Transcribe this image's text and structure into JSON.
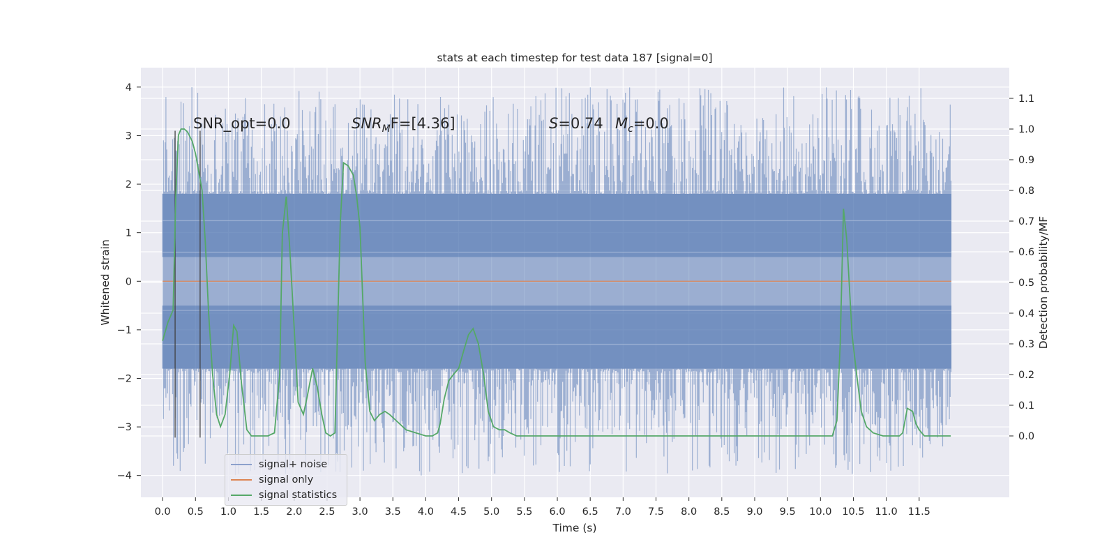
{
  "chart_data": {
    "type": "line",
    "title": "stats at each timestep for test data 187 [signal=0]",
    "xlabel": "Time (s)",
    "ylabel": "Whitened strain",
    "y2label": "Detection probability/MF",
    "xlim": [
      -0.33,
      12.87
    ],
    "ylim": [
      -4.45,
      4.4
    ],
    "y2lim": [
      -0.2,
      1.2
    ],
    "x_ticks": [
      0.0,
      0.5,
      1.0,
      1.5,
      2.0,
      2.5,
      3.0,
      3.5,
      4.0,
      4.5,
      5.0,
      5.5,
      6.0,
      6.5,
      7.0,
      7.5,
      8.0,
      8.5,
      9.0,
      9.5,
      10.0,
      10.5,
      11.0,
      11.5
    ],
    "x_tick_labels": [
      "0.0",
      "0.5",
      "1.0",
      "1.5",
      "2.0",
      "2.5",
      "3.0",
      "3.5",
      "4.0",
      "4.5",
      "5.0",
      "5.5",
      "6.0",
      "6.5",
      "7.0",
      "7.5",
      "8.0",
      "8.5",
      "9.0",
      "9.5",
      "10.0",
      "10.5",
      "11.0",
      "11.5"
    ],
    "y_ticks": [
      4,
      3,
      2,
      1,
      0,
      -1,
      -2,
      -3,
      -4
    ],
    "y_tick_labels": [
      "4",
      "3",
      "2",
      "1",
      "0",
      "−1",
      "−2",
      "−3",
      "−4"
    ],
    "y2_ticks": [
      1.1,
      1.0,
      0.9,
      0.8,
      0.7,
      0.6,
      0.5,
      0.4,
      0.3,
      0.2,
      0.1,
      0.0
    ],
    "y2_tick_labels": [
      "1.1",
      "1.0",
      "0.9",
      "0.8",
      "0.7",
      "0.6",
      "0.5",
      "0.4",
      "0.3",
      "0.2",
      "0.1",
      "0.0"
    ],
    "grid": true,
    "legend_position": "lower-left",
    "annotations": {
      "snr_opt": "SNR_opt=0.0",
      "snr_mf": "SNR",
      "snr_mf_sub": "M",
      "snr_mf_rest": "F=[4.36]",
      "s_label": "S",
      "s_value": "=0.74",
      "mc_label": "M",
      "mc_sub": "c",
      "mc_value": "=0.0"
    },
    "vlines_x": [
      0.19,
      0.57
    ],
    "noise": {
      "name": "signal+ noise",
      "color": "#4c72b0",
      "x_range": [
        0.0,
        11.99
      ],
      "amplitude_core": 1.8,
      "amplitude_peak": 4.0
    },
    "signal_only": {
      "name": "signal only",
      "color": "#dd8452",
      "value": 0.0
    },
    "stats": {
      "name": "signal statistics",
      "color": "#55a868",
      "x": [
        0.0,
        0.08,
        0.16,
        0.2,
        0.24,
        0.28,
        0.33,
        0.38,
        0.45,
        0.5,
        0.55,
        0.6,
        0.65,
        0.7,
        0.76,
        0.82,
        0.88,
        0.95,
        1.02,
        1.08,
        1.13,
        1.2,
        1.28,
        1.35,
        1.45,
        1.6,
        1.7,
        1.78,
        1.82,
        1.88,
        1.93,
        2.0,
        2.06,
        2.14,
        2.2,
        2.28,
        2.35,
        2.42,
        2.48,
        2.55,
        2.62,
        2.7,
        2.75,
        2.82,
        2.9,
        2.95,
        3.0,
        3.08,
        3.15,
        3.22,
        3.3,
        3.38,
        3.45,
        3.55,
        3.7,
        3.85,
        4.0,
        4.1,
        4.18,
        4.22,
        4.28,
        4.35,
        4.42,
        4.5,
        4.58,
        4.65,
        4.72,
        4.8,
        4.88,
        4.95,
        5.03,
        5.12,
        5.2,
        5.28,
        5.38,
        5.5,
        5.7,
        6.0,
        6.3,
        6.5,
        6.8,
        7.2,
        7.5,
        7.6,
        7.8,
        8.2,
        8.6,
        9.0,
        9.4,
        9.55,
        9.7,
        9.9,
        10.1,
        10.18,
        10.25,
        10.3,
        10.35,
        10.4,
        10.48,
        10.55,
        10.62,
        10.7,
        10.8,
        10.95,
        11.1,
        11.2,
        11.25,
        11.32,
        11.4,
        11.45,
        11.5,
        11.58,
        11.7,
        11.82,
        11.9,
        11.98
      ],
      "y": [
        0.31,
        0.37,
        0.41,
        0.78,
        0.98,
        1.0,
        1.0,
        0.99,
        0.96,
        0.92,
        0.86,
        0.8,
        0.63,
        0.4,
        0.2,
        0.07,
        0.03,
        0.07,
        0.2,
        0.36,
        0.34,
        0.17,
        0.02,
        0.0,
        0.0,
        0.0,
        0.01,
        0.2,
        0.66,
        0.78,
        0.62,
        0.35,
        0.11,
        0.07,
        0.13,
        0.22,
        0.16,
        0.07,
        0.01,
        0.0,
        0.01,
        0.69,
        0.89,
        0.88,
        0.85,
        0.78,
        0.68,
        0.24,
        0.08,
        0.05,
        0.07,
        0.08,
        0.07,
        0.05,
        0.02,
        0.01,
        0.0,
        0.0,
        0.01,
        0.04,
        0.12,
        0.18,
        0.2,
        0.22,
        0.28,
        0.33,
        0.35,
        0.3,
        0.2,
        0.08,
        0.03,
        0.02,
        0.02,
        0.01,
        0.0,
        0.0,
        0.0,
        0.0,
        0.0,
        0.0,
        0.0,
        0.0,
        0.0,
        0.0,
        0.0,
        0.0,
        0.0,
        0.0,
        0.0,
        0.0,
        0.0,
        0.0,
        0.0,
        0.0,
        0.05,
        0.3,
        0.74,
        0.64,
        0.33,
        0.2,
        0.08,
        0.03,
        0.01,
        0.0,
        0.0,
        0.0,
        0.01,
        0.09,
        0.08,
        0.04,
        0.02,
        0.0,
        0.0,
        0.0,
        0.0,
        0.0
      ]
    }
  }
}
